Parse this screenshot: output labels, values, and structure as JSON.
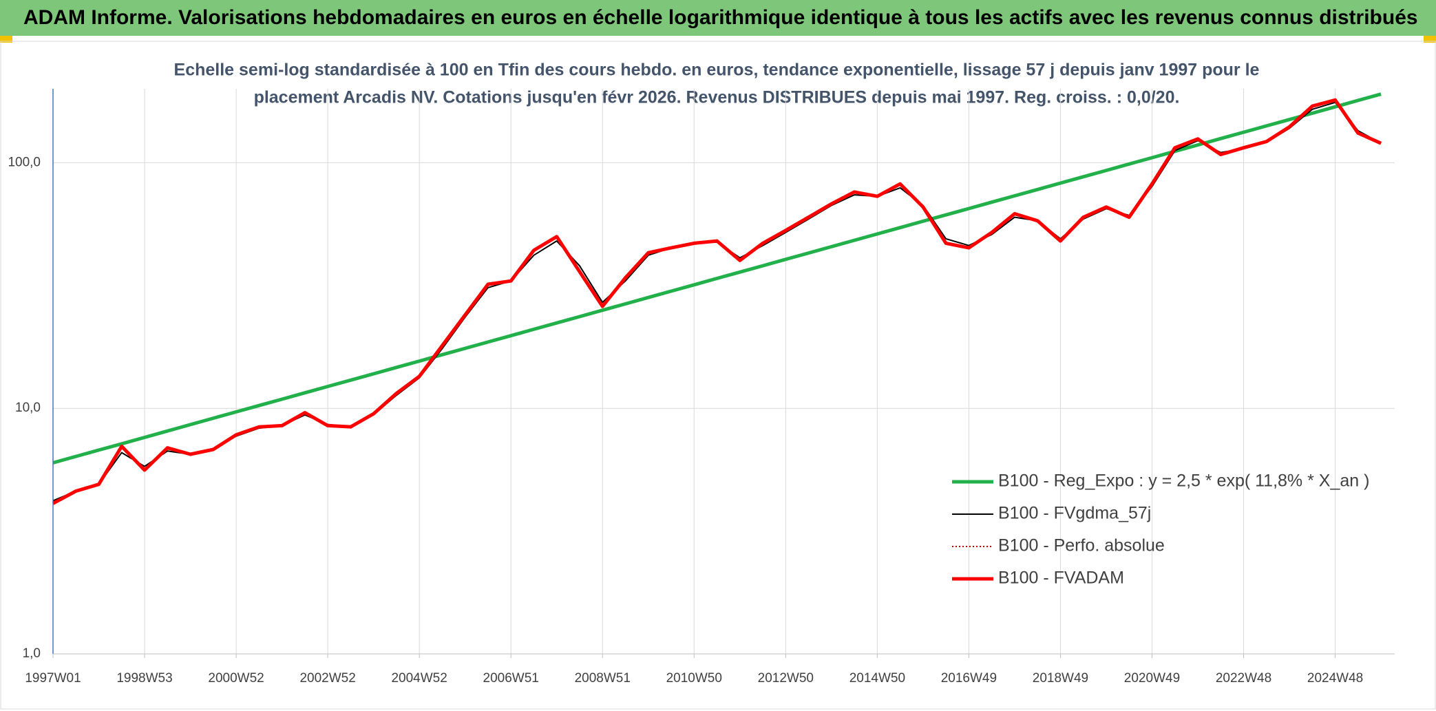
{
  "header": {
    "title": "ADAM Informe. Valorisations hebdomadaires en euros en échelle logarithmique identique à tous les actifs avec les revenus connus distribués"
  },
  "chart_data": {
    "type": "line",
    "subtitle_lines": [
      "Echelle semi-log standardisée à 100 en Tfin des cours hebdo. en euros, tendance exponentielle, lissage 57 j depuis janv 1997 pour le",
      "placement Arcadis NV. Cotations jusqu'en févr 2026. Revenus DISTRIBUES depuis mai 1997. Reg. croiss. : 0,0/20."
    ],
    "categories": [
      "1997W01",
      null,
      null,
      null,
      "1998W53",
      null,
      null,
      null,
      "2000W52",
      null,
      null,
      null,
      "2002W52",
      null,
      null,
      null,
      "2004W52",
      null,
      null,
      null,
      "2006W51",
      null,
      null,
      null,
      "2008W51",
      null,
      null,
      null,
      "2010W50",
      null,
      null,
      null,
      "2012W50",
      null,
      null,
      null,
      "2014W50",
      null,
      null,
      null,
      "2016W49",
      null,
      null,
      null,
      "2018W49",
      null,
      null,
      null,
      "2020W49",
      null,
      null,
      null,
      "2022W48",
      null,
      null,
      null,
      "2024W48",
      null,
      null
    ],
    "log_scale": true,
    "ylim": [
      1,
      200
    ],
    "yticks": [
      {
        "value": 1,
        "label": "1,0"
      },
      {
        "value": 10,
        "label": "10,0"
      },
      {
        "value": 100,
        "label": "100,0"
      }
    ],
    "grid": true,
    "legend": "lower right",
    "series": [
      {
        "name": "B100 - Reg_Expo : y = 2,5 * exp( 11,8% *  X_an )",
        "color": "#22b04b",
        "line_style": "solid",
        "values": [
          6.0,
          6.37,
          6.76,
          7.17,
          7.61,
          8.08,
          8.58,
          9.11,
          9.67,
          10.26,
          10.89,
          11.56,
          12.27,
          13.02,
          13.82,
          14.67,
          15.57,
          16.53,
          17.54,
          18.62,
          19.76,
          20.98,
          22.26,
          23.63,
          25.08,
          26.62,
          28.26,
          29.99,
          31.83,
          33.79,
          35.86,
          38.06,
          40.4,
          42.88,
          45.52,
          48.31,
          51.28,
          54.43,
          57.77,
          61.32,
          65.08,
          69.08,
          73.32,
          77.82,
          82.6,
          87.67,
          93.06,
          98.77,
          104.8,
          111.3,
          118.1,
          125.4,
          133.1,
          141.2,
          149.9,
          159.1,
          168.9,
          179.3,
          190.3
        ]
      },
      {
        "name": "B100 - FVgdma_57j",
        "color": "#000000",
        "line_style": "solid",
        "values": [
          4.2,
          4.6,
          4.9,
          6.6,
          5.8,
          6.7,
          6.5,
          6.8,
          7.7,
          8.3,
          8.5,
          9.4,
          8.6,
          8.4,
          9.4,
          11.3,
          13.3,
          17.5,
          23.5,
          31,
          33,
          42,
          48,
          38,
          27,
          33,
          42,
          45,
          47,
          47.5,
          41,
          46,
          52,
          59,
          67,
          74,
          73,
          79,
          67,
          49,
          46,
          51,
          60,
          58,
          49,
          59,
          65,
          61,
          80,
          112,
          123,
          110,
          114,
          121,
          138,
          165,
          176,
          135,
          120
        ]
      },
      {
        "name": "B100 - Perfo. absolue",
        "color": "#c00000",
        "line_style": "dotted",
        "values": [
          4.1,
          4.6,
          4.9,
          7.0,
          5.6,
          6.9,
          6.5,
          6.8,
          7.8,
          8.4,
          8.5,
          9.6,
          8.5,
          8.4,
          9.5,
          11.5,
          13.5,
          18.0,
          24.0,
          32,
          33,
          44,
          50,
          36,
          26,
          34,
          43,
          45,
          47,
          48,
          40,
          47,
          53,
          60,
          68,
          76,
          73,
          82,
          66,
          47,
          45,
          52,
          62,
          58,
          48,
          60,
          66,
          60,
          82,
          115,
          125,
          108,
          115,
          122,
          140,
          170,
          180,
          132,
          120
        ]
      },
      {
        "name": "B100 - FVADAM",
        "color": "#ff0000",
        "line_style": "solid",
        "values": [
          4.1,
          4.6,
          4.9,
          7.0,
          5.6,
          6.9,
          6.5,
          6.8,
          7.8,
          8.4,
          8.5,
          9.6,
          8.5,
          8.4,
          9.5,
          11.5,
          13.5,
          18.0,
          24.0,
          32,
          33,
          44,
          50,
          36,
          26,
          34,
          43,
          45,
          47,
          48,
          40,
          47,
          53,
          60,
          68,
          76,
          73,
          82,
          66,
          47,
          45,
          52,
          62,
          58,
          48,
          60,
          66,
          60,
          82,
          115,
          125,
          108,
          115,
          122,
          140,
          170,
          180,
          132,
          120
        ]
      }
    ]
  }
}
